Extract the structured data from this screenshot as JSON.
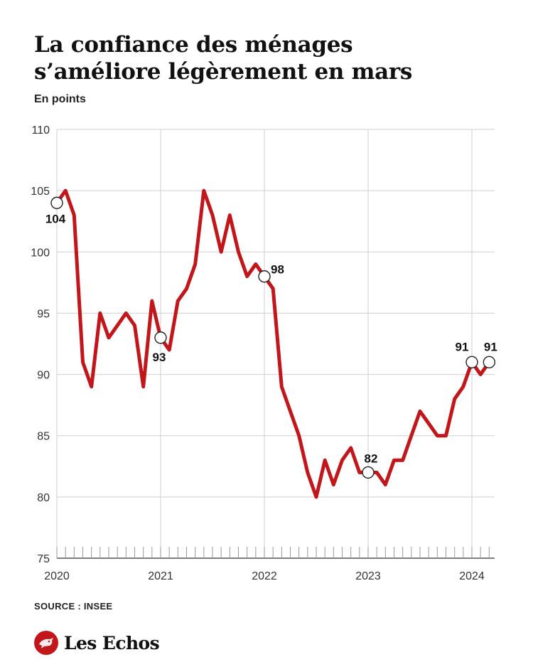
{
  "header": {
    "title_line1": "La confiance des ménages",
    "title_line2": "s’améliore légèrement en mars",
    "subtitle": "En points"
  },
  "footer": {
    "source": "SOURCE : INSEE",
    "brand": "Les Echos",
    "brand_color": "#c2161b"
  },
  "chart_data": {
    "type": "line",
    "title": "La confiance des ménages s’améliore légèrement en mars",
    "ylabel": "En points",
    "xlabel": "",
    "ylim": [
      75,
      110
    ],
    "yticks": [
      75,
      80,
      85,
      90,
      95,
      100,
      105,
      110
    ],
    "xticks": [
      {
        "year": 2020,
        "label": "2020"
      },
      {
        "year": 2021,
        "label": "2021"
      },
      {
        "year": 2022,
        "label": "2022"
      },
      {
        "year": 2023,
        "label": "2023"
      },
      {
        "year": 2024,
        "label": "2024"
      }
    ],
    "grid": true,
    "line_color": "#c2161b",
    "series": [
      {
        "x": [
          "2020-01",
          "2020-02",
          "2020-03",
          "2020-04",
          "2020-05",
          "2020-06",
          "2020-07",
          "2020-08",
          "2020-09",
          "2020-10",
          "2020-11",
          "2020-12",
          "2021-01",
          "2021-02",
          "2021-03",
          "2021-04",
          "2021-05",
          "2021-06",
          "2021-07",
          "2021-08",
          "2021-09",
          "2021-10",
          "2021-11",
          "2021-12",
          "2022-01",
          "2022-02",
          "2022-03",
          "2022-04",
          "2022-05",
          "2022-06",
          "2022-07",
          "2022-08",
          "2022-09",
          "2022-10",
          "2022-11",
          "2022-12",
          "2023-01",
          "2023-02",
          "2023-03",
          "2023-04",
          "2023-05",
          "2023-06",
          "2023-07",
          "2023-08",
          "2023-09",
          "2023-10",
          "2023-11",
          "2023-12",
          "2024-01",
          "2024-02",
          "2024-03"
        ],
        "values": [
          104,
          105,
          103,
          91,
          89,
          95,
          93,
          94,
          95,
          94,
          89,
          96,
          93,
          92,
          96,
          97,
          99,
          105,
          103,
          100,
          103,
          100,
          98,
          99,
          98,
          97,
          89,
          87,
          85,
          82,
          80,
          83,
          81,
          83,
          84,
          82,
          82,
          82,
          81,
          83,
          83,
          85,
          87,
          86,
          85,
          85,
          88,
          89,
          91,
          90,
          91
        ]
      }
    ],
    "annotations": [
      {
        "x": "2020-01",
        "y": 104,
        "label": "104"
      },
      {
        "x": "2021-01",
        "y": 93,
        "label": "93"
      },
      {
        "x": "2022-01",
        "y": 98,
        "label": "98"
      },
      {
        "x": "2023-01",
        "y": 82,
        "label": "82"
      },
      {
        "x": "2024-01",
        "y": 91,
        "label": "91"
      },
      {
        "x": "2024-03",
        "y": 91,
        "label": "91"
      }
    ]
  }
}
